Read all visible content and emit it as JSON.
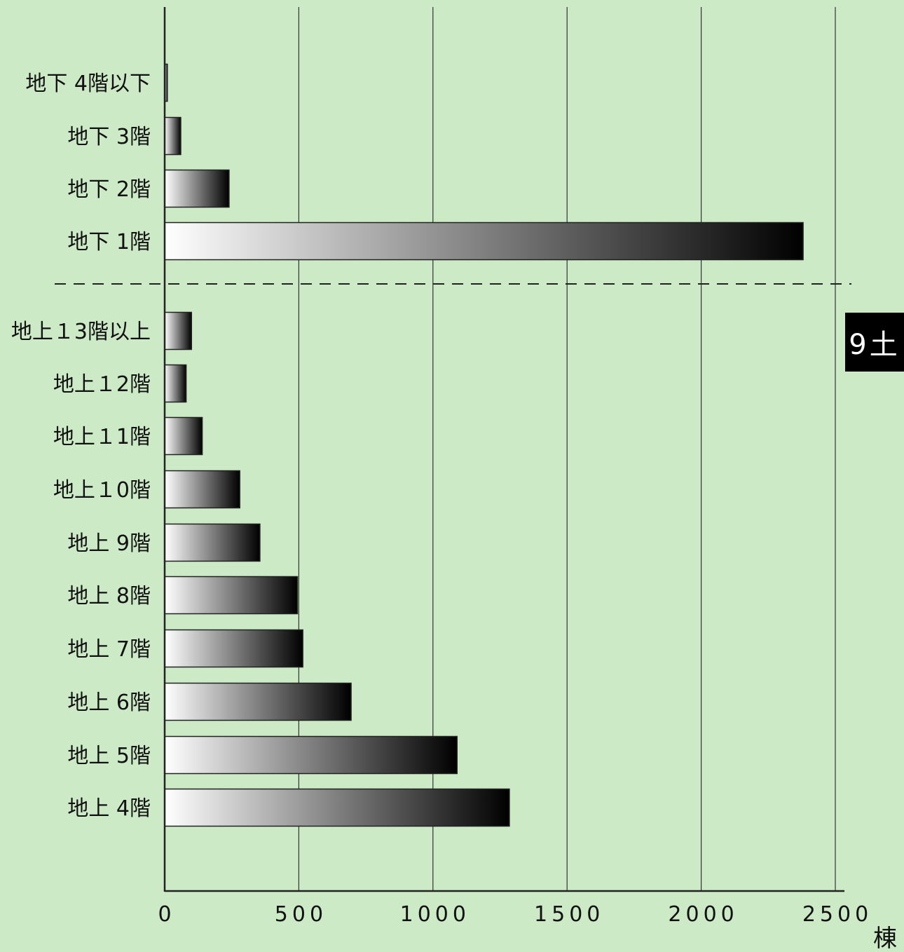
{
  "side_tab": {
    "label": "9土"
  },
  "chart_data": {
    "type": "bar",
    "orientation": "horizontal",
    "categories": [
      "地下 4階以下",
      "地下 3階",
      "地下 2階",
      "地下 1階",
      "地上１3階以上",
      "地上１2階",
      "地上１1階",
      "地上１0階",
      "地上 9階",
      "地上 8階",
      "地上 7階",
      "地上 6階",
      "地上 5階",
      "地上 4階"
    ],
    "values": [
      10,
      60,
      240,
      2380,
      100,
      80,
      140,
      280,
      355,
      495,
      515,
      695,
      1090,
      1285
    ],
    "groups": [
      {
        "name": "",
        "categories": [
          "地下 4階以下",
          "地下 3階",
          "地下 2階",
          "地下 1階"
        ]
      },
      {
        "name": "",
        "categories": [
          "地上１3階以上",
          "地上１2階",
          "地上１1階",
          "地上１0階",
          "地上 9階",
          "地上 8階",
          "地上 7階",
          "地上 6階",
          "地上 5階",
          "地上 4階"
        ]
      }
    ],
    "x_ticks": [
      0,
      500,
      1000,
      1500,
      2000,
      2500
    ],
    "xlim": [
      0,
      2500
    ],
    "unit": "棟",
    "title": "",
    "xlabel": "",
    "ylabel": "",
    "grid": true,
    "divider_between_groups": "dashed",
    "bar_fill": "gradient white-to-black",
    "colors": {
      "background": "#cdeac6",
      "bar_start": "#ffffff",
      "bar_end": "#000000",
      "tab_bg": "#000000",
      "tab_text": "#ffffff"
    }
  }
}
